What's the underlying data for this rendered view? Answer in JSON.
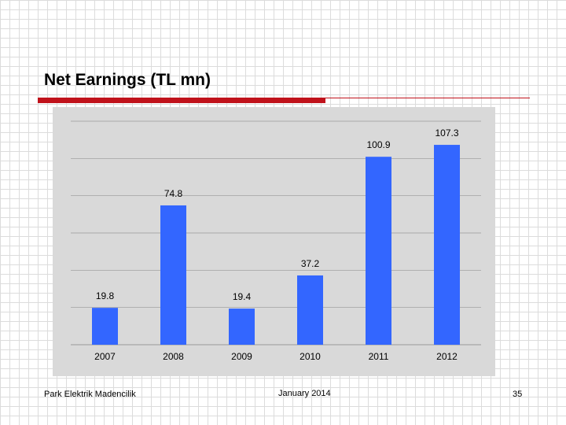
{
  "slide": {
    "title": "Net Earnings (TL mn)",
    "footer_left": "Park Elektrik Madencilik",
    "footer_center": "January   2014",
    "page_number": "35"
  },
  "colors": {
    "bar": "#3366ff",
    "accent": "#c0121b",
    "panel": "#d9d9d9",
    "gridline": "#999999"
  },
  "chart_data": {
    "type": "bar",
    "title": "Net Earnings (TL mn)",
    "categories": [
      "2007",
      "2008",
      "2009",
      "2010",
      "2011",
      "2012"
    ],
    "values": [
      19.8,
      74.8,
      19.4,
      37.2,
      100.9,
      107.3
    ],
    "labels": [
      "19.8",
      "74.8",
      "19.4",
      "37.2",
      "100.9",
      "107.3"
    ],
    "ylim": [
      0,
      120
    ],
    "grid": true,
    "xlabel": "",
    "ylabel": ""
  }
}
